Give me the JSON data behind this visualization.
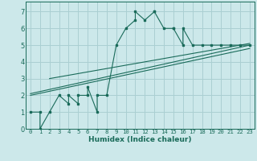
{
  "xlabel": "Humidex (Indice chaleur)",
  "bg_color": "#cce8ea",
  "grid_color": "#aacfd2",
  "line_color": "#1a6b5a",
  "xlim": [
    -0.5,
    23.5
  ],
  "ylim": [
    0,
    7.6
  ],
  "xticks": [
    0,
    1,
    2,
    3,
    4,
    5,
    6,
    7,
    8,
    9,
    10,
    11,
    12,
    13,
    14,
    15,
    16,
    17,
    18,
    19,
    20,
    21,
    22,
    23
  ],
  "yticks": [
    0,
    1,
    2,
    3,
    4,
    5,
    6,
    7
  ],
  "line1_x": [
    0,
    1,
    1,
    2,
    3,
    4,
    4,
    5,
    5,
    6,
    6,
    7,
    7,
    8,
    9,
    10,
    11,
    11,
    12,
    13,
    13,
    14,
    15,
    15,
    16,
    16,
    17,
    18,
    19,
    20,
    21,
    22,
    23
  ],
  "line1_y": [
    1,
    1,
    0,
    1,
    2,
    1.5,
    2,
    1.5,
    2,
    2,
    2.5,
    1,
    2,
    2,
    5,
    6,
    6.5,
    7,
    6.5,
    7,
    7,
    6,
    6,
    6,
    5,
    6,
    5,
    5,
    5,
    5,
    5,
    5,
    5
  ],
  "line2_x": [
    0,
    23
  ],
  "line2_y": [
    2.1,
    5.0
  ],
  "line3_x": [
    0,
    23
  ],
  "line3_y": [
    2.0,
    4.8
  ],
  "line4_x": [
    2,
    23
  ],
  "line4_y": [
    3.0,
    5.1
  ]
}
